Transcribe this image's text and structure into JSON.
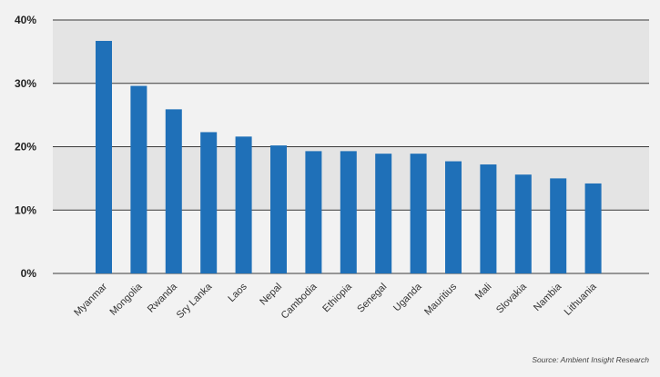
{
  "chart_data": {
    "type": "bar",
    "categories": [
      "Myanmar",
      "Mongolia",
      "Rwanda",
      "Sry Lanka",
      "Laos",
      "Nepal",
      "Cambodia",
      "Ethiopia",
      "Senegal",
      "Uganda",
      "Mauritius",
      "Mali",
      "Slovakia",
      "Nambia",
      "Lithuania"
    ],
    "values": [
      36.7,
      29.6,
      25.9,
      22.3,
      21.6,
      20.2,
      19.3,
      19.3,
      18.9,
      18.9,
      17.7,
      17.2,
      15.6,
      15.0,
      14.2
    ],
    "ylim": [
      0,
      40
    ],
    "yticks": [
      0,
      10,
      20,
      30,
      40
    ],
    "ytick_labels": [
      "0%",
      "10%",
      "20%",
      "30%",
      "40%"
    ],
    "bar_color": "#1f70b8",
    "band_color": "#e4e4e4",
    "grid": true,
    "source": "Source: Ambient Insight Research"
  }
}
